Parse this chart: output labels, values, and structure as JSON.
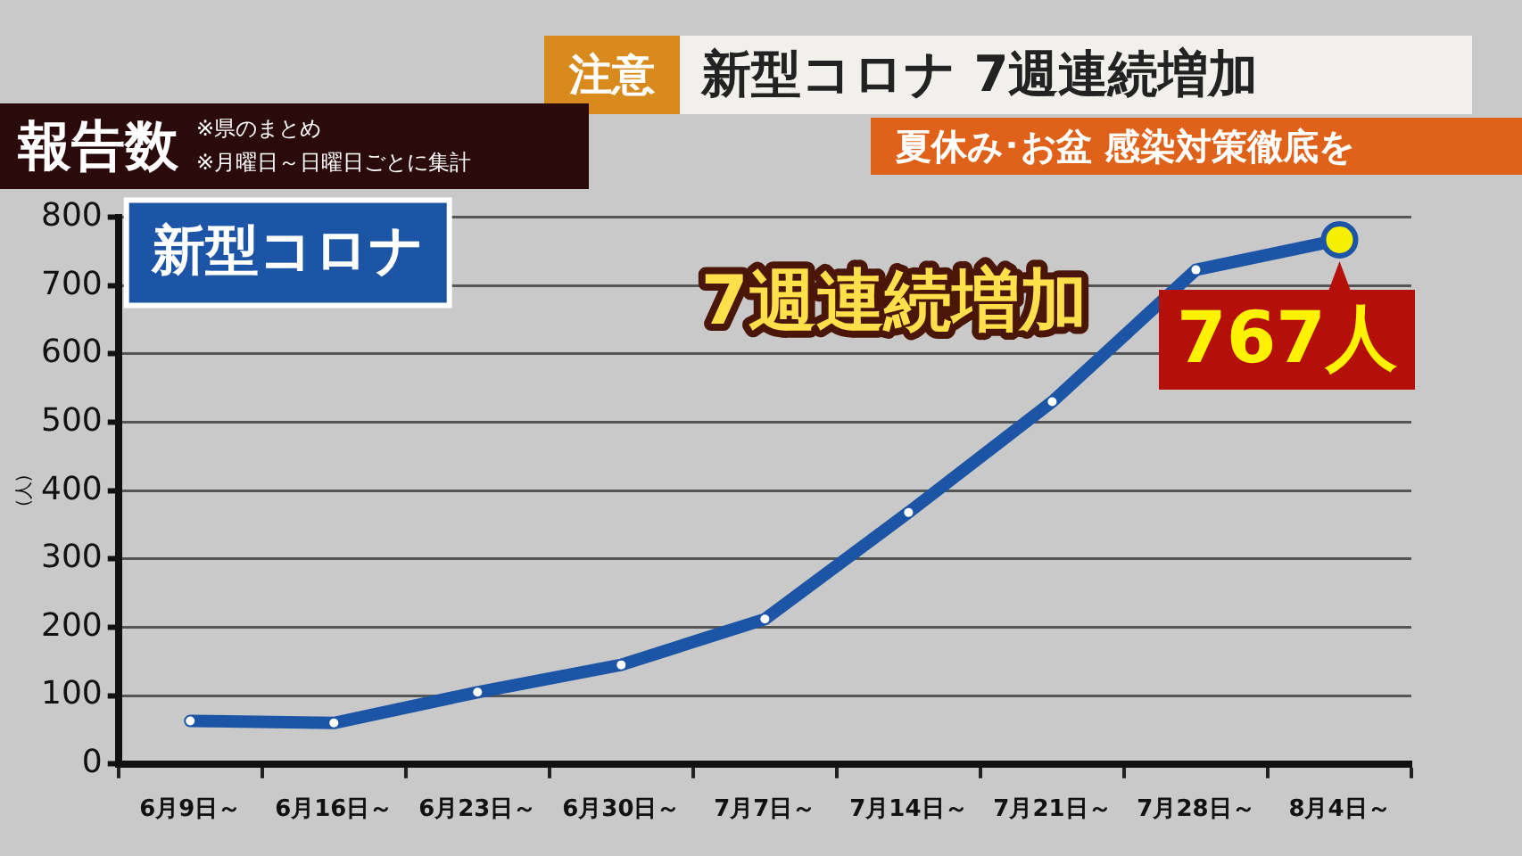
{
  "chart_data": {
    "type": "line",
    "title": "新型コロナ 7週連続増加",
    "subtitle": "夏休み･お盆 感染対策徹底を",
    "ylabel": "(人)",
    "categories": [
      "6月9日～",
      "6月16日～",
      "6月23日～",
      "6月30日～",
      "7月7日～",
      "7月14日～",
      "7月21日～",
      "7月28日～",
      "8月4日～"
    ],
    "series": [
      {
        "name": "新型コロナ",
        "color": "#1c55a6",
        "values": [
          63,
          60,
          105,
          145,
          212,
          368,
          530,
          723,
          767
        ]
      }
    ],
    "ylim": [
      0,
      800
    ],
    "yticks": [
      0,
      100,
      200,
      300,
      400,
      500,
      600,
      700,
      800
    ],
    "grid": "y",
    "legend": "top left",
    "marker": "circle",
    "line_style": "solid",
    "annotations": [
      "注意",
      "報告数",
      "※県のまとめ",
      "※月曜日～日曜日ごとに集計",
      "7週連続増加",
      {
        "text": "767人",
        "x": "8月4日～",
        "y": 767
      }
    ]
  }
}
